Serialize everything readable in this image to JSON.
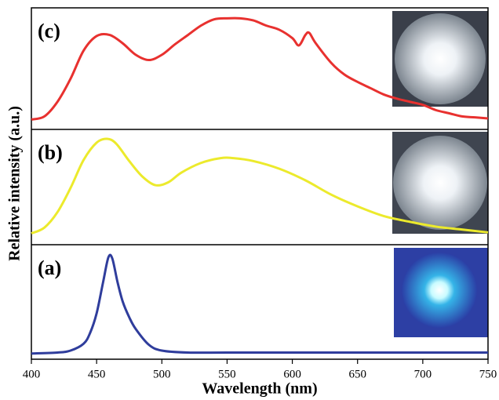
{
  "chart_data": {
    "type": "line",
    "x_label": "Wavelength (nm)",
    "y_label": "Relative intensity (a.u.)",
    "xlim": [
      400,
      750
    ],
    "xticks": [
      400,
      450,
      500,
      550,
      600,
      650,
      700,
      750
    ],
    "ylim": [
      0,
      1
    ],
    "series": [
      {
        "label": "(c)",
        "color": "#e8312f",
        "x": [
          400,
          410,
          420,
          430,
          440,
          450,
          460,
          470,
          480,
          490,
          500,
          510,
          520,
          530,
          540,
          550,
          560,
          570,
          580,
          590,
          600,
          605,
          610,
          613,
          618,
          630,
          640,
          650,
          660,
          670,
          680,
          690,
          700,
          710,
          720,
          730,
          740,
          750
        ],
        "values": [
          0.02,
          0.05,
          0.19,
          0.41,
          0.68,
          0.82,
          0.83,
          0.75,
          0.64,
          0.59,
          0.64,
          0.74,
          0.83,
          0.92,
          0.98,
          0.99,
          0.99,
          0.97,
          0.92,
          0.88,
          0.8,
          0.73,
          0.83,
          0.85,
          0.75,
          0.56,
          0.45,
          0.38,
          0.32,
          0.26,
          0.22,
          0.19,
          0.16,
          0.11,
          0.08,
          0.05,
          0.04,
          0.03
        ]
      },
      {
        "label": "(b)",
        "color": "#ecea2c",
        "x": [
          400,
          410,
          420,
          430,
          440,
          450,
          458,
          465,
          475,
          485,
          495,
          505,
          515,
          530,
          545,
          555,
          570,
          590,
          610,
          630,
          650,
          670,
          690,
          710,
          730,
          750
        ],
        "values": [
          0.02,
          0.08,
          0.24,
          0.49,
          0.78,
          0.96,
          1.0,
          0.95,
          0.77,
          0.61,
          0.52,
          0.55,
          0.65,
          0.75,
          0.8,
          0.8,
          0.77,
          0.69,
          0.57,
          0.42,
          0.3,
          0.2,
          0.14,
          0.09,
          0.06,
          0.03
        ]
      },
      {
        "label": "(a)",
        "color": "#2f3d9c",
        "x": [
          400,
          420,
          430,
          440,
          445,
          450,
          455,
          459,
          462,
          466,
          470,
          475,
          480,
          490,
          500,
          520,
          550,
          600,
          750
        ],
        "values": [
          0.01,
          0.02,
          0.04,
          0.11,
          0.22,
          0.42,
          0.74,
          0.99,
          0.98,
          0.74,
          0.54,
          0.38,
          0.26,
          0.1,
          0.04,
          0.02,
          0.02,
          0.02,
          0.02
        ]
      }
    ]
  }
}
